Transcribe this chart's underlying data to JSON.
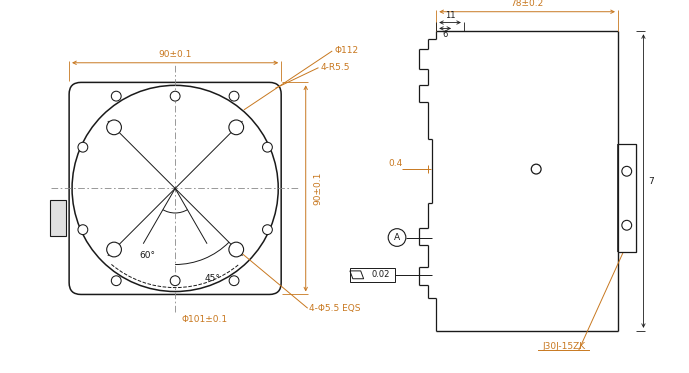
{
  "bg_color": "#ffffff",
  "line_color": "#1a1a1a",
  "dim_color": "#c87820",
  "dim_color2": "#1a1a1a",
  "annotations": {
    "front_width_label": "90±0.1",
    "front_height_label": "90±0.1",
    "large_circle_label": "Φ112",
    "corner_radius_label": "4-R5.5",
    "bolt_circle_label": "4-Φ5.5 EQS",
    "bolt_circle_dia_label": "Φ101±0.1",
    "angle_60_label": "60°",
    "angle_45_label": "45°",
    "side_width_label": "78±0.2",
    "side_dim_11": "11",
    "side_dim_6": "6",
    "side_dim_04": "0.4",
    "side_right_label": "7",
    "connector_label": "J30J-15ZK",
    "flatness_label": "0.02",
    "circle_A_label": "A"
  }
}
